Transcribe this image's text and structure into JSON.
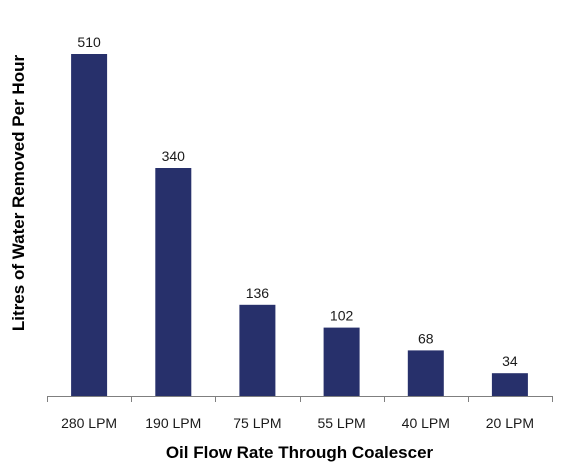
{
  "chart_data": {
    "type": "bar",
    "title": "",
    "xlabel": "Oil Flow Rate Through Coalescer",
    "ylabel": "Litres of Water Removed Per Hour",
    "categories": [
      "280 LPM",
      "190 LPM",
      "75 LPM",
      "55 LPM",
      "40 LPM",
      "20 LPM"
    ],
    "values": [
      510,
      340,
      136,
      102,
      68,
      34
    ],
    "data_labels": [
      "510",
      "340",
      "136",
      "102",
      "68",
      "34"
    ],
    "ylim": [
      0,
      600
    ],
    "grid": false,
    "legend": "none",
    "bar_color": "#27306b",
    "axis_color": "#7f7f7f"
  }
}
